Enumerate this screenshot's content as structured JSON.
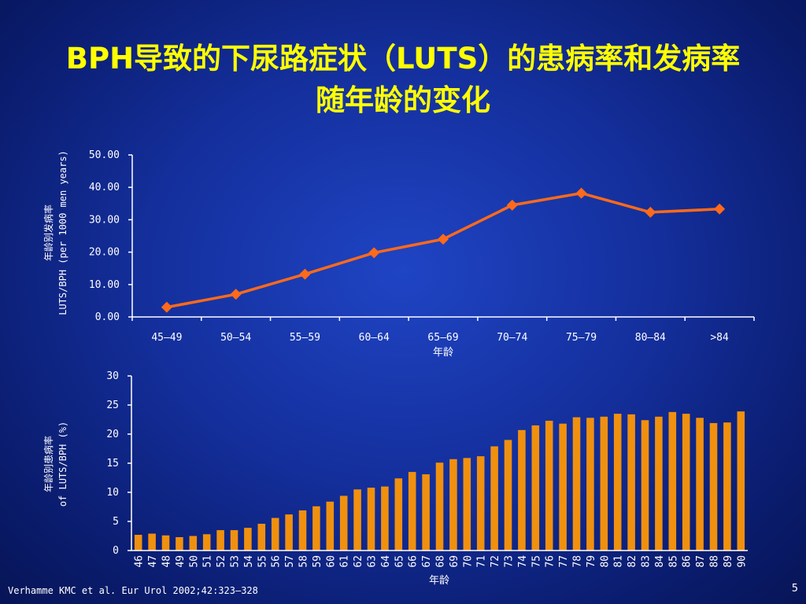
{
  "slide": {
    "title_line1": "BPH导致的下尿路症状（LUTS）的患病率和发病率",
    "title_line2": "随年龄的变化",
    "citation": "Verhamme KMC et al. Eur Urol 2002;42:323–328",
    "page_number": "5",
    "title_color": "#ffff00"
  },
  "chart_data": [
    {
      "type": "line",
      "categories": [
        "45–49",
        "50–54",
        "55–59",
        "60–64",
        "65–69",
        "70–74",
        "75–79",
        "80–84",
        ">84"
      ],
      "values": [
        3.0,
        7.0,
        13.2,
        19.8,
        24.0,
        34.5,
        38.2,
        32.3,
        33.3
      ],
      "ylim": [
        0,
        50
      ],
      "yticks": [
        "0.00",
        "10.00",
        "20.00",
        "30.00",
        "40.00",
        "50.00"
      ],
      "xlabel": "年龄",
      "ylabel_line1": "年龄别发病率",
      "ylabel_line2": "LUTS/BPH (per 1000 men years)",
      "line_color": "#ff6a1a",
      "marker": "diamond"
    },
    {
      "type": "bar",
      "categories": [
        "46",
        "47",
        "48",
        "49",
        "50",
        "51",
        "52",
        "53",
        "54",
        "55",
        "56",
        "57",
        "58",
        "59",
        "60",
        "61",
        "62",
        "63",
        "64",
        "65",
        "66",
        "67",
        "68",
        "69",
        "70",
        "71",
        "72",
        "73",
        "74",
        "75",
        "76",
        "77",
        "78",
        "79",
        "80",
        "81",
        "82",
        "83",
        "84",
        "85",
        "86",
        "87",
        "88",
        "89",
        "90"
      ],
      "values": [
        2.7,
        2.9,
        2.6,
        2.3,
        2.5,
        2.8,
        3.5,
        3.5,
        3.9,
        4.6,
        5.6,
        6.2,
        6.9,
        7.6,
        8.4,
        9.4,
        10.5,
        10.8,
        11.0,
        12.4,
        13.5,
        13.1,
        15.1,
        15.7,
        15.9,
        16.2,
        17.9,
        19.0,
        20.7,
        21.5,
        22.3,
        21.8,
        22.9,
        22.8,
        23.0,
        23.5,
        23.4,
        22.4,
        23.0,
        23.8,
        23.5,
        22.8,
        21.9,
        22.0,
        23.9
      ],
      "ylim": [
        0,
        30
      ],
      "yticks": [
        "0",
        "5",
        "10",
        "15",
        "20",
        "25",
        "30"
      ],
      "xlabel": "年龄",
      "ylabel_line1": "年龄别患病率",
      "ylabel_line2": "of LUTS/BPH (%)",
      "bar_color": "#f0900f"
    }
  ]
}
